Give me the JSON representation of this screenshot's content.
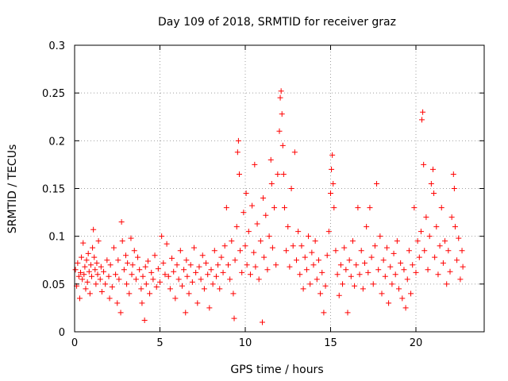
{
  "chart_data": {
    "type": "scatter",
    "title": "Day 109 of 2018, SRMTID for receiver graz",
    "xlabel": "GPS time / hours",
    "ylabel": "SRMTID / TECUs",
    "xlim": [
      0,
      24
    ],
    "ylim": [
      0,
      0.3
    ],
    "xticks": [
      0,
      5,
      10,
      15,
      20
    ],
    "xtick_labels": [
      "0",
      "5",
      "10",
      "15",
      "20"
    ],
    "yticks": [
      0,
      0.05,
      0.1,
      0.15,
      0.2,
      0.25,
      0.3
    ],
    "ytick_labels": [
      "0",
      "0.05",
      "0.1",
      "0.15",
      "0.2",
      "0.25",
      "0.3"
    ],
    "grid": true,
    "marker": "+",
    "color": "#ff0000",
    "series": [
      {
        "name": "SRMTID",
        "points": [
          [
            0.05,
            0.065
          ],
          [
            0.12,
            0.048
          ],
          [
            0.18,
            0.072
          ],
          [
            0.25,
            0.058
          ],
          [
            0.3,
            0.035
          ],
          [
            0.35,
            0.062
          ],
          [
            0.4,
            0.078
          ],
          [
            0.45,
            0.055
          ],
          [
            0.5,
            0.093
          ],
          [
            0.55,
            0.06
          ],
          [
            0.6,
            0.068
          ],
          [
            0.65,
            0.045
          ],
          [
            0.7,
            0.075
          ],
          [
            0.75,
            0.052
          ],
          [
            0.8,
            0.082
          ],
          [
            0.85,
            0.063
          ],
          [
            0.9,
            0.04
          ],
          [
            0.95,
            0.07
          ],
          [
            1.0,
            0.058
          ],
          [
            1.05,
            0.088
          ],
          [
            1.1,
            0.107
          ],
          [
            1.15,
            0.078
          ],
          [
            1.2,
            0.065
          ],
          [
            1.25,
            0.05
          ],
          [
            1.3,
            0.072
          ],
          [
            1.35,
            0.06
          ],
          [
            1.4,
            0.095
          ],
          [
            1.5,
            0.055
          ],
          [
            1.55,
            0.068
          ],
          [
            1.6,
            0.042
          ],
          [
            1.7,
            0.063
          ],
          [
            1.8,
            0.05
          ],
          [
            1.9,
            0.075
          ],
          [
            2.0,
            0.058
          ],
          [
            2.05,
            0.035
          ],
          [
            2.1,
            0.07
          ],
          [
            2.2,
            0.047
          ],
          [
            2.3,
            0.088
          ],
          [
            2.4,
            0.06
          ],
          [
            2.5,
            0.03
          ],
          [
            2.55,
            0.075
          ],
          [
            2.6,
            0.055
          ],
          [
            2.7,
            0.02
          ],
          [
            2.75,
            0.115
          ],
          [
            2.8,
            0.095
          ],
          [
            2.9,
            0.065
          ],
          [
            3.0,
            0.08
          ],
          [
            3.05,
            0.05
          ],
          [
            3.1,
            0.072
          ],
          [
            3.2,
            0.04
          ],
          [
            3.3,
            0.098
          ],
          [
            3.35,
            0.06
          ],
          [
            3.4,
            0.07
          ],
          [
            3.5,
            0.085
          ],
          [
            3.6,
            0.055
          ],
          [
            3.7,
            0.078
          ],
          [
            3.8,
            0.065
          ],
          [
            3.9,
            0.045
          ],
          [
            3.95,
            0.03
          ],
          [
            4.0,
            0.058
          ],
          [
            4.1,
            0.012
          ],
          [
            4.15,
            0.068
          ],
          [
            4.2,
            0.05
          ],
          [
            4.3,
            0.074
          ],
          [
            4.4,
            0.04
          ],
          [
            4.5,
            0.062
          ],
          [
            4.6,
            0.055
          ],
          [
            4.7,
            0.08
          ],
          [
            4.8,
            0.047
          ],
          [
            4.9,
            0.066
          ],
          [
            5.0,
            0.052
          ],
          [
            5.1,
            0.1
          ],
          [
            5.2,
            0.072
          ],
          [
            5.3,
            0.06
          ],
          [
            5.4,
            0.092
          ],
          [
            5.5,
            0.058
          ],
          [
            5.6,
            0.045
          ],
          [
            5.7,
            0.077
          ],
          [
            5.8,
            0.063
          ],
          [
            5.9,
            0.035
          ],
          [
            6.0,
            0.07
          ],
          [
            6.1,
            0.055
          ],
          [
            6.2,
            0.085
          ],
          [
            6.3,
            0.048
          ],
          [
            6.4,
            0.065
          ],
          [
            6.5,
            0.02
          ],
          [
            6.55,
            0.075
          ],
          [
            6.6,
            0.058
          ],
          [
            6.7,
            0.04
          ],
          [
            6.8,
            0.07
          ],
          [
            6.9,
            0.052
          ],
          [
            7.0,
            0.088
          ],
          [
            7.1,
            0.062
          ],
          [
            7.2,
            0.03
          ],
          [
            7.3,
            0.068
          ],
          [
            7.4,
            0.055
          ],
          [
            7.5,
            0.08
          ],
          [
            7.6,
            0.045
          ],
          [
            7.7,
            0.072
          ],
          [
            7.8,
            0.06
          ],
          [
            7.9,
            0.025
          ],
          [
            8.0,
            0.065
          ],
          [
            8.1,
            0.05
          ],
          [
            8.2,
            0.085
          ],
          [
            8.3,
            0.058
          ],
          [
            8.4,
            0.07
          ],
          [
            8.5,
            0.045
          ],
          [
            8.6,
            0.078
          ],
          [
            8.7,
            0.062
          ],
          [
            8.8,
            0.09
          ],
          [
            8.9,
            0.13
          ],
          [
            9.0,
            0.07
          ],
          [
            9.1,
            0.055
          ],
          [
            9.2,
            0.095
          ],
          [
            9.3,
            0.04
          ],
          [
            9.35,
            0.014
          ],
          [
            9.4,
            0.075
          ],
          [
            9.5,
            0.11
          ],
          [
            9.55,
            0.188
          ],
          [
            9.6,
            0.2
          ],
          [
            9.65,
            0.165
          ],
          [
            9.7,
            0.085
          ],
          [
            9.8,
            0.062
          ],
          [
            9.9,
            0.125
          ],
          [
            10.0,
            0.09
          ],
          [
            10.05,
            0.145
          ],
          [
            10.1,
            0.07
          ],
          [
            10.2,
            0.105
          ],
          [
            10.3,
            0.06
          ],
          [
            10.4,
            0.132
          ],
          [
            10.5,
            0.083
          ],
          [
            10.55,
            0.175
          ],
          [
            10.6,
            0.068
          ],
          [
            10.7,
            0.113
          ],
          [
            10.8,
            0.055
          ],
          [
            10.9,
            0.095
          ],
          [
            11.0,
            0.01
          ],
          [
            11.05,
            0.14
          ],
          [
            11.1,
            0.078
          ],
          [
            11.2,
            0.122
          ],
          [
            11.3,
            0.065
          ],
          [
            11.4,
            0.1
          ],
          [
            11.5,
            0.18
          ],
          [
            11.55,
            0.155
          ],
          [
            11.6,
            0.088
          ],
          [
            11.7,
            0.13
          ],
          [
            11.8,
            0.07
          ],
          [
            11.9,
            0.165
          ],
          [
            12.0,
            0.21
          ],
          [
            12.05,
            0.245
          ],
          [
            12.1,
            0.252
          ],
          [
            12.15,
            0.228
          ],
          [
            12.2,
            0.195
          ],
          [
            12.25,
            0.165
          ],
          [
            12.3,
            0.13
          ],
          [
            12.4,
            0.085
          ],
          [
            12.5,
            0.11
          ],
          [
            12.6,
            0.068
          ],
          [
            12.7,
            0.15
          ],
          [
            12.8,
            0.09
          ],
          [
            12.9,
            0.188
          ],
          [
            13.0,
            0.075
          ],
          [
            13.1,
            0.105
          ],
          [
            13.2,
            0.06
          ],
          [
            13.3,
            0.09
          ],
          [
            13.4,
            0.045
          ],
          [
            13.5,
            0.078
          ],
          [
            13.6,
            0.065
          ],
          [
            13.7,
            0.1
          ],
          [
            13.8,
            0.05
          ],
          [
            13.9,
            0.083
          ],
          [
            14.0,
            0.07
          ],
          [
            14.1,
            0.095
          ],
          [
            14.2,
            0.055
          ],
          [
            14.3,
            0.075
          ],
          [
            14.4,
            0.04
          ],
          [
            14.5,
            0.062
          ],
          [
            14.6,
            0.02
          ],
          [
            14.7,
            0.048
          ],
          [
            14.8,
            0.08
          ],
          [
            14.9,
            0.105
          ],
          [
            15.0,
            0.145
          ],
          [
            15.05,
            0.17
          ],
          [
            15.1,
            0.185
          ],
          [
            15.15,
            0.155
          ],
          [
            15.2,
            0.13
          ],
          [
            15.3,
            0.085
          ],
          [
            15.4,
            0.06
          ],
          [
            15.5,
            0.038
          ],
          [
            15.6,
            0.07
          ],
          [
            15.7,
            0.05
          ],
          [
            15.8,
            0.088
          ],
          [
            15.9,
            0.065
          ],
          [
            16.0,
            0.02
          ],
          [
            16.1,
            0.075
          ],
          [
            16.2,
            0.058
          ],
          [
            16.3,
            0.095
          ],
          [
            16.4,
            0.048
          ],
          [
            16.5,
            0.07
          ],
          [
            16.6,
            0.13
          ],
          [
            16.7,
            0.06
          ],
          [
            16.8,
            0.085
          ],
          [
            16.9,
            0.045
          ],
          [
            17.0,
            0.072
          ],
          [
            17.1,
            0.11
          ],
          [
            17.2,
            0.062
          ],
          [
            17.3,
            0.13
          ],
          [
            17.4,
            0.078
          ],
          [
            17.5,
            0.05
          ],
          [
            17.6,
            0.09
          ],
          [
            17.7,
            0.155
          ],
          [
            17.8,
            0.065
          ],
          [
            17.9,
            0.1
          ],
          [
            18.0,
            0.04
          ],
          [
            18.1,
            0.075
          ],
          [
            18.2,
            0.058
          ],
          [
            18.3,
            0.088
          ],
          [
            18.4,
            0.03
          ],
          [
            18.5,
            0.068
          ],
          [
            18.6,
            0.05
          ],
          [
            18.7,
            0.082
          ],
          [
            18.8,
            0.06
          ],
          [
            18.9,
            0.095
          ],
          [
            19.0,
            0.045
          ],
          [
            19.1,
            0.072
          ],
          [
            19.2,
            0.035
          ],
          [
            19.3,
            0.065
          ],
          [
            19.4,
            0.025
          ],
          [
            19.5,
            0.055
          ],
          [
            19.6,
            0.085
          ],
          [
            19.7,
            0.04
          ],
          [
            19.8,
            0.07
          ],
          [
            19.9,
            0.13
          ],
          [
            20.0,
            0.062
          ],
          [
            20.1,
            0.095
          ],
          [
            20.2,
            0.078
          ],
          [
            20.3,
            0.105
          ],
          [
            20.35,
            0.222
          ],
          [
            20.4,
            0.23
          ],
          [
            20.45,
            0.175
          ],
          [
            20.5,
            0.085
          ],
          [
            20.6,
            0.12
          ],
          [
            20.7,
            0.065
          ],
          [
            20.8,
            0.1
          ],
          [
            20.9,
            0.155
          ],
          [
            21.0,
            0.17
          ],
          [
            21.05,
            0.145
          ],
          [
            21.1,
            0.078
          ],
          [
            21.2,
            0.11
          ],
          [
            21.3,
            0.06
          ],
          [
            21.4,
            0.09
          ],
          [
            21.5,
            0.13
          ],
          [
            21.6,
            0.072
          ],
          [
            21.7,
            0.095
          ],
          [
            21.8,
            0.05
          ],
          [
            21.9,
            0.085
          ],
          [
            22.0,
            0.063
          ],
          [
            22.1,
            0.12
          ],
          [
            22.2,
            0.165
          ],
          [
            22.25,
            0.15
          ],
          [
            22.3,
            0.11
          ],
          [
            22.4,
            0.075
          ],
          [
            22.5,
            0.098
          ],
          [
            22.6,
            0.055
          ],
          [
            22.7,
            0.085
          ],
          [
            22.75,
            0.068
          ]
        ]
      }
    ]
  }
}
